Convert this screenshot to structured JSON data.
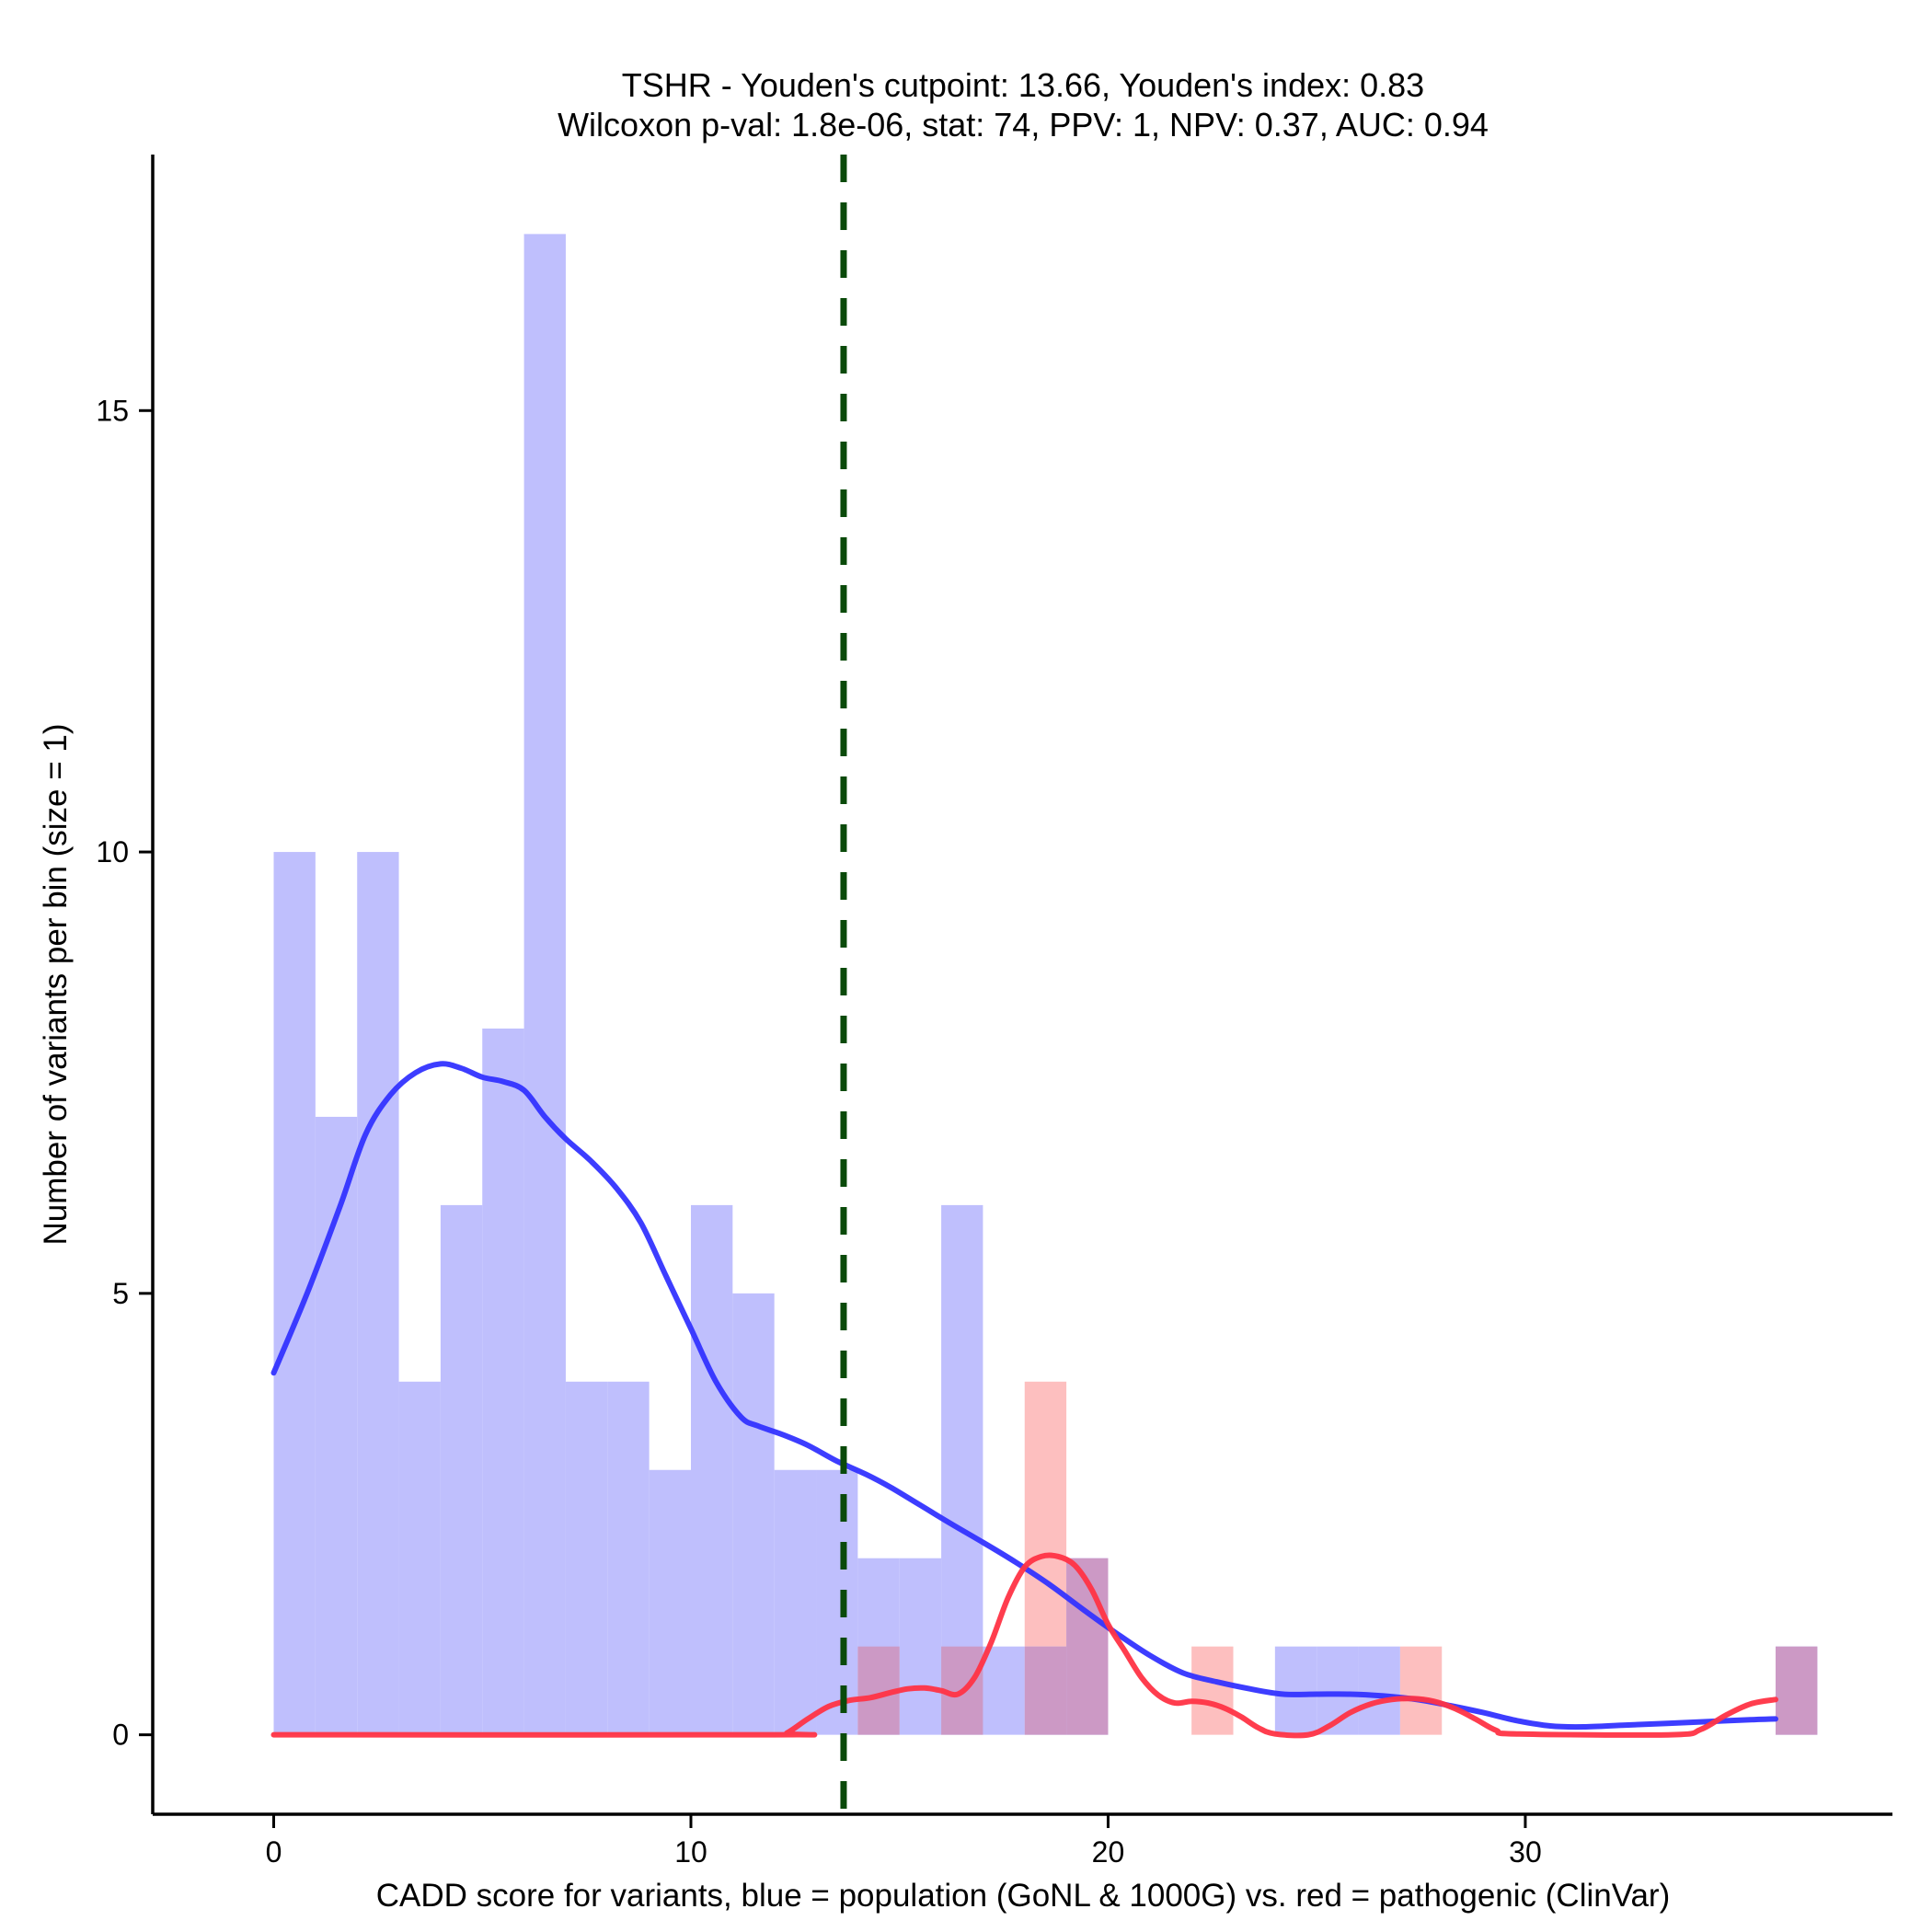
{
  "chart_data": {
    "type": "bar",
    "title": [
      "TSHR - Youden's cutpoint: 13.66, Youden's index: 0.83",
      "Wilcoxon p-val: 1.8e-06, stat: 74, PPV: 1, NPV: 0.37, AUC: 0.94"
    ],
    "xlabel": "CADD score for variants, blue = population (GoNL & 1000G) vs. red = pathogenic (ClinVar)",
    "ylabel": "Number of variants per bin (size = 1)",
    "xlim": [
      -2.9,
      38.8
    ],
    "ylim": [
      -0.9,
      17.9
    ],
    "x_ticks": [
      0,
      10,
      20,
      30
    ],
    "y_ticks": [
      0,
      5,
      10,
      15
    ],
    "bin_width": 1,
    "cutpoint": 13.66,
    "colors": {
      "population_bar": "#bfbffd",
      "pathogenic_bar": "#fdbfbf",
      "overlap_bar": "#cc99c5",
      "population_line": "#3333ff",
      "pathogenic_line": "#ff3344",
      "cutpoint_line": "#0a4a0a"
    },
    "series": [
      {
        "name": "population (GoNL & 1000G)",
        "bins": [
          {
            "start": 0,
            "value": 10
          },
          {
            "start": 1,
            "value": 7
          },
          {
            "start": 2,
            "value": 10
          },
          {
            "start": 3,
            "value": 4
          },
          {
            "start": 4,
            "value": 6
          },
          {
            "start": 5,
            "value": 8
          },
          {
            "start": 6,
            "value": 17
          },
          {
            "start": 7,
            "value": 4
          },
          {
            "start": 8,
            "value": 4
          },
          {
            "start": 9,
            "value": 3
          },
          {
            "start": 10,
            "value": 6
          },
          {
            "start": 11,
            "value": 5
          },
          {
            "start": 12,
            "value": 3
          },
          {
            "start": 13,
            "value": 3
          },
          {
            "start": 14,
            "value": 2
          },
          {
            "start": 15,
            "value": 2
          },
          {
            "start": 16,
            "value": 6
          },
          {
            "start": 17,
            "value": 1
          },
          {
            "start": 18,
            "value": 1
          },
          {
            "start": 19,
            "value": 2
          },
          {
            "start": 24,
            "value": 1
          },
          {
            "start": 25,
            "value": 1
          },
          {
            "start": 26,
            "value": 1
          },
          {
            "start": 36,
            "value": 1
          }
        ]
      },
      {
        "name": "pathogenic (ClinVar)",
        "bins": [
          {
            "start": 14,
            "value": 1
          },
          {
            "start": 16,
            "value": 1
          },
          {
            "start": 18,
            "value": 4
          },
          {
            "start": 19,
            "value": 2
          },
          {
            "start": 22,
            "value": 1
          },
          {
            "start": 27,
            "value": 1
          },
          {
            "start": 36,
            "value": 1
          }
        ]
      }
    ],
    "density_lines": [
      {
        "name": "population density",
        "x": [
          0,
          0.8,
          1.6,
          2.2,
          2.8,
          3.4,
          4,
          4.5,
          5,
          5.5,
          6,
          6.5,
          7,
          7.6,
          8.2,
          8.8,
          9.4,
          10,
          10.6,
          11.2,
          11.6,
          12.2,
          12.8,
          13.5,
          14.2,
          14.8,
          15.5,
          16.2,
          17,
          17.8,
          18.6,
          19.4,
          20.2,
          21,
          21.8,
          22.6,
          23.4,
          24.2,
          25,
          25.8,
          26.6,
          27.4,
          28.2,
          29,
          29.8,
          30.6,
          31.4,
          32.4,
          33.4,
          34.4,
          35.4,
          36
        ],
        "y": [
          4.1,
          5.0,
          6.0,
          6.8,
          7.25,
          7.5,
          7.6,
          7.55,
          7.45,
          7.4,
          7.3,
          7.0,
          6.75,
          6.5,
          6.2,
          5.8,
          5.2,
          4.6,
          4.0,
          3.6,
          3.5,
          3.4,
          3.28,
          3.1,
          2.95,
          2.8,
          2.6,
          2.4,
          2.18,
          1.95,
          1.7,
          1.42,
          1.15,
          0.9,
          0.7,
          0.6,
          0.52,
          0.46,
          0.46,
          0.46,
          0.44,
          0.4,
          0.33,
          0.25,
          0.16,
          0.1,
          0.09,
          0.11,
          0.13,
          0.15,
          0.17,
          0.18
        ]
      },
      {
        "name": "pathogenic density",
        "x": [
          0,
          12,
          12.3,
          12.8,
          13.3,
          13.8,
          14.3,
          14.8,
          15.2,
          15.6,
          16.0,
          16.4,
          16.8,
          17.2,
          17.6,
          18.0,
          18.4,
          18.8,
          19.2,
          19.6,
          20.0,
          20.4,
          20.8,
          21.2,
          21.6,
          22.0,
          22.4,
          22.8,
          23.2,
          23.6,
          24.0,
          24.8,
          25.3,
          25.8,
          26.3,
          26.8,
          27.3,
          27.8,
          28.3,
          28.8,
          29.3,
          29.8,
          33.5,
          34.2,
          34.8,
          35.4,
          36
        ],
        "y": [
          0,
          0,
          0.02,
          0.18,
          0.32,
          0.39,
          0.42,
          0.48,
          0.52,
          0.53,
          0.5,
          0.46,
          0.65,
          1.05,
          1.55,
          1.9,
          2.02,
          2.02,
          1.92,
          1.65,
          1.25,
          0.95,
          0.65,
          0.45,
          0.36,
          0.38,
          0.36,
          0.3,
          0.2,
          0.08,
          0.01,
          0,
          0.1,
          0.25,
          0.35,
          0.4,
          0.41,
          0.38,
          0.3,
          0.18,
          0.05,
          0.01,
          0,
          0.06,
          0.22,
          0.35,
          0.4
        ]
      }
    ]
  }
}
